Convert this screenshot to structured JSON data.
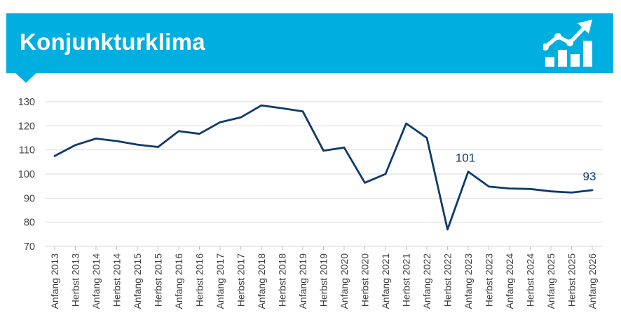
{
  "header": {
    "title": "Konjunkturklima",
    "icon": "growth-chart-icon",
    "bg_color": "#00aee0"
  },
  "chart_data": {
    "type": "line",
    "title": "Konjunkturklima",
    "xlabel": "",
    "ylabel": "",
    "ylim": [
      70,
      130
    ],
    "yticks": [
      70,
      80,
      90,
      100,
      110,
      120,
      130
    ],
    "grid": true,
    "legend": "none",
    "line_color": "#0e3a6a",
    "categories": [
      "Anfang 2013",
      "Herbst 2013",
      "Anfang 2014",
      "Herbst 2014",
      "Anfang 2015",
      "Herbst 2015",
      "Anfang 2016",
      "Herbst 2016",
      "Anfang 2017",
      "Herbst 2017",
      "Anfang 2018",
      "Herbst 2018",
      "Anfang 2019",
      "Herbst 2019",
      "Anfang 2020",
      "Herbst 2020",
      "Anfang 2021",
      "Herbst 2021",
      "Anfang 2022",
      "Herbst 2022",
      "Anfang 2023",
      "Herbst 2023",
      "Anfang 2024",
      "Herbst 2024",
      "Anfang 2025",
      "Herbst 2025",
      "Anfang 2026"
    ],
    "series": [
      {
        "values": [
          107.5,
          112,
          114.7,
          113.7,
          112.2,
          111.2,
          117.8,
          116.7,
          121.5,
          123.5,
          128.5,
          127.3,
          126,
          109.7,
          111,
          96.4,
          100,
          121,
          115,
          77,
          101,
          94.8,
          94,
          93.8,
          92.8,
          92.3,
          93.3
        ]
      }
    ],
    "annotations": [
      {
        "category": "Anfang 2023",
        "text": "101"
      },
      {
        "category": "Anfang 2026",
        "text": "93"
      }
    ]
  }
}
